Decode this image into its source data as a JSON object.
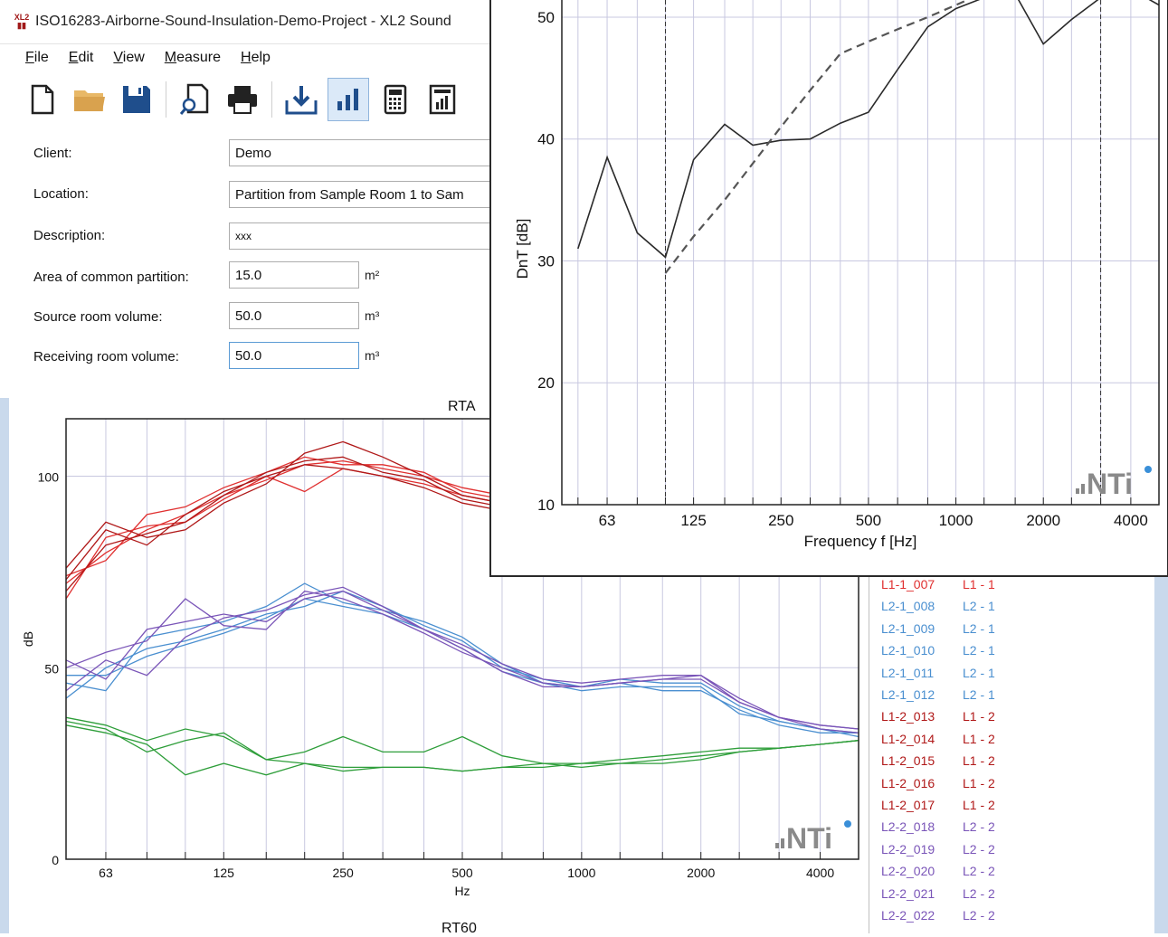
{
  "window": {
    "title": "ISO16283-Airborne-Sound-Insulation-Demo-Project - XL2 Sound",
    "icon_text": "XL2"
  },
  "menu": [
    {
      "label": "File"
    },
    {
      "label": "Edit"
    },
    {
      "label": "View"
    },
    {
      "label": "Measure"
    },
    {
      "label": "Help"
    }
  ],
  "toolbar": [
    {
      "icon": "new-document-icon"
    },
    {
      "icon": "open-folder-icon"
    },
    {
      "icon": "save-disk-icon"
    },
    {
      "icon": "print-preview-icon"
    },
    {
      "icon": "printer-icon"
    },
    {
      "icon": "import-download-icon"
    },
    {
      "icon": "bar-chart-icon",
      "active": true
    },
    {
      "icon": "calculator-icon"
    },
    {
      "icon": "report-icon"
    }
  ],
  "form": {
    "client_label": "Client:",
    "client_value": "Demo",
    "location_label": "Location:",
    "location_value": "Partition from Sample Room 1 to Sam",
    "description_label": "Description:",
    "description_value": "xxx",
    "area_label": "Area of common partition:",
    "area_value": "15.0",
    "area_unit": "m²",
    "source_label": "Source room volume:",
    "source_value": "50.0",
    "source_unit": "m³",
    "receiving_label": "Receiving room volume:",
    "receiving_value": "50.0",
    "receiving_unit": "m³"
  },
  "rta_chart_title": "RTA",
  "rt60_chart_title": "RT60",
  "legend": [
    {
      "a": "L1-1_007",
      "b": "L1 - 1",
      "color": "#e03030"
    },
    {
      "a": "L2-1_008",
      "b": "L2 - 1",
      "color": "#4a8fd0"
    },
    {
      "a": "L2-1_009",
      "b": "L2 - 1",
      "color": "#4a8fd0"
    },
    {
      "a": "L2-1_010",
      "b": "L2 - 1",
      "color": "#4a8fd0"
    },
    {
      "a": "L2-1_011",
      "b": "L2 - 1",
      "color": "#4a8fd0"
    },
    {
      "a": "L2-1_012",
      "b": "L2 - 1",
      "color": "#4a8fd0"
    },
    {
      "a": "L1-2_013",
      "b": "L1 - 2",
      "color": "#b01818"
    },
    {
      "a": "L1-2_014",
      "b": "L1 - 2",
      "color": "#b01818"
    },
    {
      "a": "L1-2_015",
      "b": "L1 - 2",
      "color": "#b01818"
    },
    {
      "a": "L1-2_016",
      "b": "L1 - 2",
      "color": "#b01818"
    },
    {
      "a": "L1-2_017",
      "b": "L1 - 2",
      "color": "#b01818"
    },
    {
      "a": "L2-2_018",
      "b": "L2 - 2",
      "color": "#7a55b8"
    },
    {
      "a": "L2-2_019",
      "b": "L2 - 2",
      "color": "#7a55b8"
    },
    {
      "a": "L2-2_020",
      "b": "L2 - 2",
      "color": "#7a55b8"
    },
    {
      "a": "L2-2_021",
      "b": "L2 - 2",
      "color": "#7a55b8"
    },
    {
      "a": "L2-2_022",
      "b": "L2 - 2",
      "color": "#7a55b8"
    }
  ],
  "colors": {
    "red": "#e03030",
    "darkred": "#b01818",
    "blue": "#4a8fd0",
    "purple": "#7a55b8",
    "green": "#2e9e3a",
    "grid": "#c8c8e0"
  },
  "chart_data": [
    {
      "type": "line",
      "title": "RTA",
      "xlabel": "Hz",
      "ylabel": "dB",
      "x_scale": "log",
      "x_ticks": [
        63,
        125,
        250,
        500,
        1000,
        2000,
        4000
      ],
      "y_ticks": [
        0,
        50,
        100
      ],
      "xlim": [
        50,
        5000
      ],
      "ylim": [
        0,
        115
      ],
      "x": [
        50,
        63,
        80,
        100,
        125,
        160,
        200,
        250,
        315,
        400,
        500,
        630,
        800,
        1000,
        1250,
        1600,
        2000,
        2500,
        3150,
        4000,
        5000
      ],
      "series": [
        {
          "group": "L1 - 1",
          "color": "#e03030",
          "values": [
            72,
            80,
            86,
            90,
            95,
            99,
            103,
            104,
            102,
            100,
            97,
            95,
            null,
            null,
            null,
            null,
            null,
            null,
            null,
            null,
            null
          ]
        },
        {
          "group": "L1 - 1",
          "color": "#e03030",
          "values": [
            68,
            84,
            87,
            88,
            94,
            100,
            96,
            102,
            100,
            98,
            95,
            93,
            null,
            null,
            null,
            null,
            null,
            null,
            null,
            null,
            null
          ]
        },
        {
          "group": "L1 - 1",
          "color": "#e03030",
          "values": [
            74,
            78,
            90,
            92,
            97,
            101,
            105,
            103,
            103,
            101,
            96,
            94,
            null,
            null,
            null,
            null,
            null,
            null,
            null,
            null,
            null
          ]
        },
        {
          "group": "L1 - 2",
          "color": "#b01818",
          "values": [
            76,
            88,
            84,
            86,
            93,
            98,
            106,
            109,
            105,
            100,
            95,
            93,
            null,
            null,
            null,
            null,
            null,
            null,
            null,
            null,
            null
          ]
        },
        {
          "group": "L1 - 2",
          "color": "#b01818",
          "values": [
            70,
            82,
            85,
            88,
            95,
            101,
            104,
            105,
            101,
            99,
            94,
            92,
            null,
            null,
            null,
            null,
            null,
            null,
            null,
            null,
            null
          ]
        },
        {
          "group": "L1 - 2",
          "color": "#b01818",
          "values": [
            73,
            86,
            82,
            90,
            96,
            100,
            103,
            102,
            100,
            97,
            93,
            91,
            null,
            null,
            null,
            null,
            null,
            null,
            null,
            null,
            null
          ]
        },
        {
          "group": "L2 - 1",
          "color": "#4a8fd0",
          "values": [
            42,
            50,
            55,
            57,
            60,
            64,
            66,
            70,
            66,
            61,
            57,
            50,
            47,
            45,
            46,
            44,
            44,
            39,
            35,
            33,
            33
          ]
        },
        {
          "group": "L2 - 1",
          "color": "#4a8fd0",
          "values": [
            46,
            44,
            58,
            60,
            62,
            66,
            72,
            67,
            65,
            62,
            58,
            51,
            46,
            44,
            45,
            45,
            45,
            38,
            36,
            34,
            32
          ]
        },
        {
          "group": "L2 - 1",
          "color": "#4a8fd0",
          "values": [
            48,
            48,
            53,
            56,
            59,
            63,
            68,
            66,
            64,
            60,
            55,
            49,
            46,
            45,
            47,
            46,
            46,
            40,
            36,
            34,
            33
          ]
        },
        {
          "group": "L2 - 2",
          "color": "#7a55b8",
          "values": [
            52,
            47,
            60,
            62,
            64,
            62,
            68,
            70,
            65,
            60,
            56,
            51,
            47,
            46,
            47,
            48,
            48,
            42,
            37,
            35,
            34
          ]
        },
        {
          "group": "L2 - 2",
          "color": "#7a55b8",
          "values": [
            50,
            54,
            57,
            68,
            61,
            60,
            70,
            68,
            64,
            59,
            54,
            50,
            46,
            45,
            46,
            47,
            47,
            41,
            37,
            34,
            33
          ]
        },
        {
          "group": "L2 - 2",
          "color": "#7a55b8",
          "values": [
            44,
            52,
            48,
            58,
            63,
            65,
            69,
            71,
            66,
            60,
            55,
            49,
            45,
            45,
            46,
            47,
            48,
            41,
            37,
            35,
            34
          ]
        },
        {
          "group": "T",
          "color": "#2e9e3a",
          "values": [
            37,
            35,
            31,
            34,
            32,
            26,
            28,
            32,
            28,
            28,
            32,
            27,
            25,
            25,
            26,
            27,
            28,
            29,
            29,
            30,
            31
          ]
        },
        {
          "group": "T",
          "color": "#2e9e3a",
          "values": [
            35,
            33,
            30,
            22,
            25,
            22,
            25,
            24,
            24,
            24,
            23,
            24,
            24,
            25,
            25,
            26,
            27,
            28,
            29,
            30,
            31
          ]
        },
        {
          "group": "T",
          "color": "#2e9e3a",
          "values": [
            36,
            34,
            28,
            31,
            33,
            26,
            25,
            23,
            24,
            24,
            23,
            24,
            25,
            24,
            25,
            25,
            26,
            28,
            29,
            30,
            31
          ]
        }
      ]
    },
    {
      "type": "line",
      "xlabel": "Frequency f [Hz]",
      "ylabel": "DnT [dB]",
      "x_scale": "log",
      "x_ticks": [
        63,
        125,
        250,
        500,
        1000,
        2000,
        4000
      ],
      "y_ticks": [
        10,
        20,
        30,
        40,
        50
      ],
      "xlim": [
        44,
        5000
      ],
      "ylim": [
        10,
        52
      ],
      "x": [
        50,
        63,
        80,
        100,
        125,
        160,
        200,
        250,
        315,
        400,
        500,
        630,
        800,
        1000,
        1250,
        1600,
        2000,
        2500,
        3150,
        4000,
        5000
      ],
      "series": [
        {
          "style": "solid",
          "color": "#2a2a2a",
          "values": [
            31,
            38.5,
            32.3,
            30.3,
            38.3,
            41.2,
            39.5,
            39.9,
            40.0,
            41.3,
            42.2,
            45.7,
            49.2,
            50.7,
            51.6,
            51.9,
            47.8,
            49.8,
            51.6,
            52.3,
            51.0
          ]
        },
        {
          "style": "dashed",
          "color": "#555555",
          "values": [
            null,
            null,
            null,
            29,
            32,
            35,
            38,
            41,
            44,
            47,
            48,
            49,
            50,
            51,
            52,
            52,
            52,
            52,
            52,
            null,
            null
          ]
        }
      ],
      "markers": [
        100,
        3150
      ]
    }
  ]
}
